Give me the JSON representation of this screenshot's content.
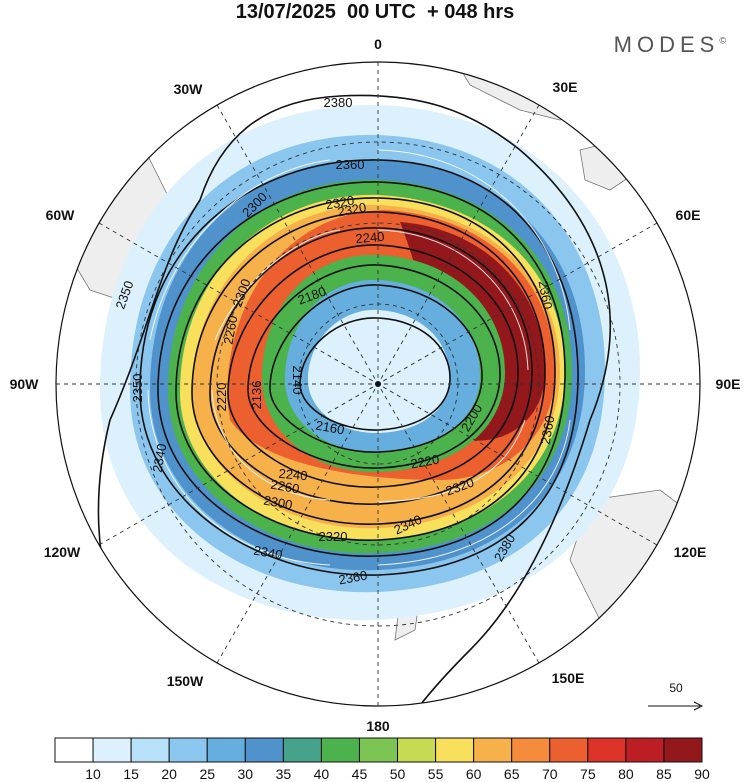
{
  "header": {
    "title": "13/07/2025  00 UTC  + 048 hrs",
    "brand": "MODES",
    "brand_mark": "©"
  },
  "map": {
    "projection": "polar-stereographic",
    "pole": "south",
    "longitude_labels": [
      "0",
      "30E",
      "60E",
      "90E",
      "120E",
      "150E",
      "180",
      "150W",
      "120W",
      "90W",
      "60W",
      "30W"
    ],
    "contour_labels": [
      "2380",
      "2360",
      "2360",
      "2360",
      "2320",
      "2300",
      "2240",
      "2180",
      "2140",
      "2160",
      "2200",
      "2220",
      "2240",
      "2260",
      "2300",
      "2320",
      "2340",
      "2340",
      "2320",
      "2360",
      "2380",
      "2350",
      "2350",
      "2340",
      "2300",
      "2260",
      "2220",
      "2136",
      "2320"
    ],
    "vector_reference": "50",
    "colors": {
      "land": "#eeeeee",
      "coast": "#777777",
      "contour": "#111111",
      "grid": "#333333"
    }
  },
  "colorbar": {
    "ticks": [
      "10",
      "15",
      "20",
      "25",
      "30",
      "35",
      "40",
      "45",
      "50",
      "55",
      "60",
      "65",
      "70",
      "75",
      "80",
      "85",
      "90"
    ],
    "colors": [
      "#ffffff",
      "#ddf1fd",
      "#b6e1f8",
      "#8ac6ee",
      "#66aede",
      "#4f92cc",
      "#46a28a",
      "#4cb24c",
      "#7cc454",
      "#c7da52",
      "#f9e05c",
      "#f7b14a",
      "#f48c3c",
      "#ec5f2e",
      "#dc3228",
      "#bd1e24",
      "#93181c"
    ]
  }
}
